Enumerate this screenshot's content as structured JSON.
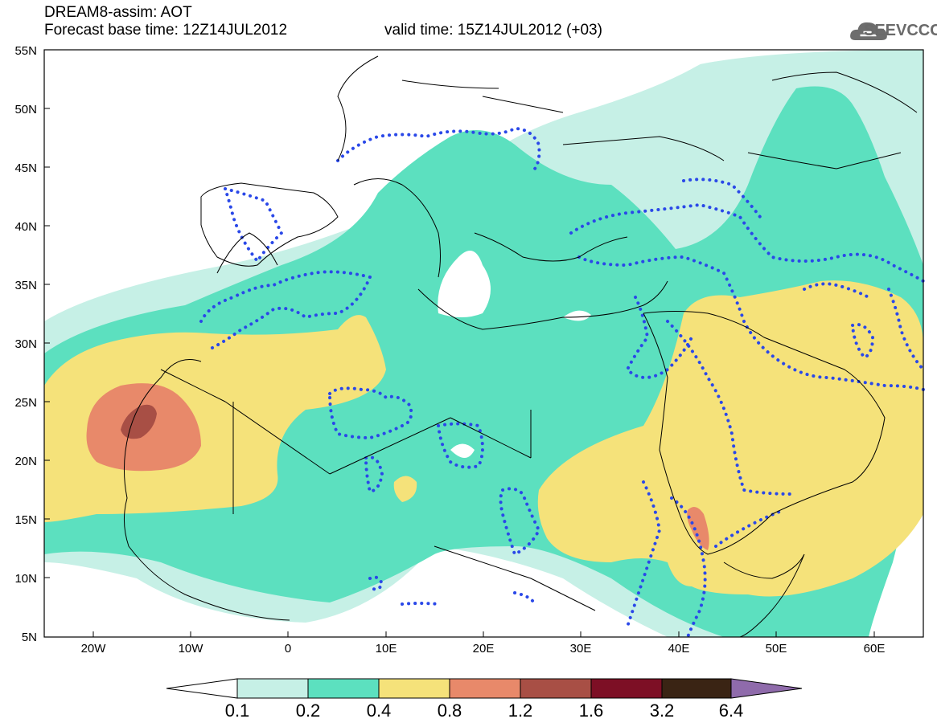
{
  "header": {
    "model": "DREAM8-assim: AOT",
    "base_time_label": "Forecast base time: 12Z14JUL2012",
    "valid_time_label": "valid time: 15Z14JUL2012 (+03)"
  },
  "logo": {
    "text": "SEEVCCC",
    "icon": "cloud-icon"
  },
  "map": {
    "lat_labels": [
      "55N",
      "50N",
      "45N",
      "40N",
      "35N",
      "30N",
      "25N",
      "20N",
      "15N",
      "10N",
      "5N"
    ],
    "lon_labels": [
      "20W",
      "10W",
      "0",
      "10E",
      "20E",
      "30E",
      "40E",
      "50E",
      "60E"
    ],
    "lat_range": [
      5,
      55
    ],
    "lon_range": [
      -25,
      65
    ],
    "colors": {
      "lt01": "#ffffff",
      "c01_02": "#c6f0e6",
      "c02_04": "#5ce0bf",
      "c04_08": "#f5e27a",
      "c08_12": "#e8896a",
      "c12_16": "#a84f45",
      "c16_32": "#7d0f25",
      "c32_64": "#3a2414",
      "gt64": "#8f6bab",
      "dotted": "#2a48e8"
    }
  },
  "colorbar": {
    "labels": [
      "0.1",
      "0.2",
      "0.4",
      "0.8",
      "1.2",
      "1.6",
      "3.2",
      "6.4"
    ]
  }
}
